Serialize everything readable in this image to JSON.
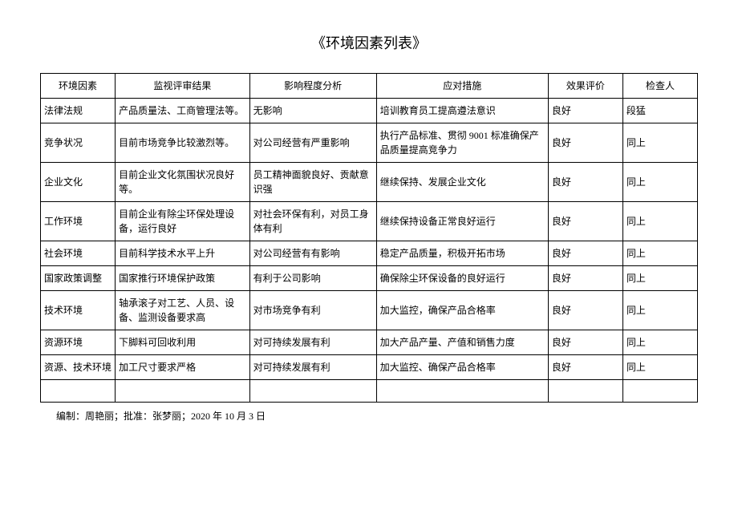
{
  "title": "《环境因素列表》",
  "table": {
    "columns": [
      "环境因素",
      "监视评审结果",
      "影响程度分析",
      "应对措施",
      "效果评价",
      "检查人"
    ],
    "rows": [
      [
        "法律法规",
        "产品质量法、工商管理法等。",
        "无影响",
        "培训教育员工提高遵法意识",
        "良好",
        "段猛"
      ],
      [
        "竞争状况",
        "目前市场竞争比较激烈等。",
        "对公司经营有严重影响",
        "执行产品标准、贯彻 9001 标准确保产品质量提高竞争力",
        "良好",
        "同上"
      ],
      [
        "企业文化",
        "目前企业文化氛围状况良好等。",
        "员工精神面貌良好、贡献意识强",
        "继续保持、发展企业文化",
        "良好",
        "同上"
      ],
      [
        "工作环境",
        "目前企业有除尘环保处理设备，运行良好",
        "对社会环保有利，对员工身体有利",
        "继续保持设备正常良好运行",
        "良好",
        "同上"
      ],
      [
        "社会环境",
        "目前科学技术水平上升",
        "对公司经营有有影响",
        "稳定产品质量，积极开拓市场",
        "良好",
        "同上"
      ],
      [
        "国家政策调整",
        "国家推行环境保护政策",
        "有利于公司影响",
        "确保除尘环保设备的良好运行",
        "良好",
        "同上"
      ],
      [
        "技术环境",
        "轴承滚子对工艺、人员、设备、监测设备要求高",
        "对市场竞争有利",
        "加大监控，确保产品合格率",
        "良好",
        "同上"
      ],
      [
        "资源环境",
        "下脚料可回收利用",
        "对可持续发展有利",
        "加大产品产量、产值和销售力度",
        "良好",
        "同上"
      ],
      [
        "资源、技术环境",
        "加工尺寸要求严格",
        "对可持续发展有利",
        "加大监控、确保产品合格率",
        "良好",
        "同上"
      ],
      [
        "",
        "",
        "",
        "",
        "",
        ""
      ]
    ]
  },
  "footer": "编制：周艳丽；批准：张梦丽；2020 年 10 月 3 日"
}
